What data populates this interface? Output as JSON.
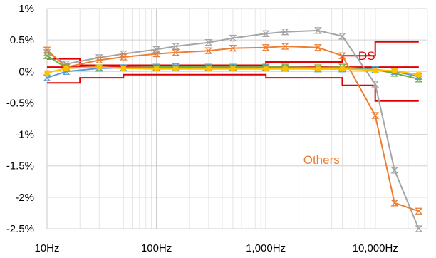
{
  "chart_data": {
    "type": "line",
    "xscale": "log",
    "xlim": [
      10,
      30000
    ],
    "ylim": [
      -2.5,
      1
    ],
    "x_tick_labels": [
      {
        "value": 10,
        "label": "10Hz"
      },
      {
        "value": 100,
        "label": "100Hz"
      },
      {
        "value": 1000,
        "label": "1,000Hz"
      },
      {
        "value": 10000,
        "label": "10,000Hz"
      }
    ],
    "y_tick_labels": [
      {
        "value": 1,
        "label": "1%"
      },
      {
        "value": 0.5,
        "label": "0.5%"
      },
      {
        "value": 0,
        "label": "0%"
      },
      {
        "value": -0.5,
        "label": "-0.5%"
      },
      {
        "value": -1,
        "label": "-1%"
      },
      {
        "value": -1.5,
        "label": "-1.5%"
      },
      {
        "value": -2,
        "label": "-2%"
      },
      {
        "value": -2.5,
        "label": "-2.5%"
      }
    ],
    "grid": true,
    "annotations": [
      {
        "text": "DS",
        "color": "#e00000",
        "x": 7000,
        "y": 0.25
      },
      {
        "text": "Others",
        "color": "#ed7d31",
        "x": 2200,
        "y": -1.4
      }
    ],
    "limit_lines": {
      "color": "#e00000",
      "upper": [
        [
          10,
          0.2
        ],
        [
          20,
          0.2
        ],
        [
          20,
          0.1
        ],
        [
          1000,
          0.1
        ],
        [
          1000,
          0.15
        ],
        [
          5000,
          0.15
        ],
        [
          5000,
          0.25
        ],
        [
          10000,
          0.25
        ],
        [
          10000,
          0.47
        ],
        [
          25000,
          0.47
        ]
      ],
      "lower": [
        [
          10,
          -0.18
        ],
        [
          20,
          -0.18
        ],
        [
          20,
          -0.1
        ],
        [
          50,
          -0.1
        ],
        [
          50,
          -0.05
        ],
        [
          1000,
          -0.05
        ],
        [
          1000,
          -0.1
        ],
        [
          5000,
          -0.1
        ],
        [
          5000,
          -0.22
        ],
        [
          10000,
          -0.22
        ],
        [
          10000,
          -0.47
        ],
        [
          25000,
          -0.47
        ]
      ],
      "mid": [
        [
          10,
          0.07
        ],
        [
          25000,
          0.07
        ]
      ]
    },
    "series": [
      {
        "color": "#a5a5a5",
        "marker": "hourglass",
        "x": [
          10,
          15,
          30,
          50,
          100,
          150,
          300,
          500,
          1000,
          1500,
          3000,
          5000,
          10000,
          15000,
          25000
        ],
        "y": [
          0.3,
          0.12,
          0.22,
          0.28,
          0.35,
          0.4,
          0.46,
          0.53,
          0.6,
          0.63,
          0.65,
          0.56,
          -0.2,
          -1.57,
          -2.5
        ]
      },
      {
        "color": "#ed7d31",
        "marker": "hourglass",
        "x": [
          10,
          15,
          30,
          50,
          100,
          150,
          300,
          500,
          1000,
          1500,
          3000,
          5000,
          10000,
          15000,
          25000
        ],
        "y": [
          0.34,
          0.07,
          0.18,
          0.23,
          0.28,
          0.3,
          0.33,
          0.37,
          0.38,
          0.4,
          0.38,
          0.25,
          -0.7,
          -2.09,
          -2.22
        ]
      },
      {
        "color": "#70ad47",
        "marker": "hourglass",
        "x": [
          10,
          15,
          30,
          50,
          100,
          150,
          300,
          500,
          1000,
          1500,
          3000,
          5000,
          10000,
          15000,
          25000
        ],
        "y": [
          0.25,
          0.06,
          0.06,
          0.06,
          0.07,
          0.08,
          0.07,
          0.07,
          0.07,
          0.07,
          0.06,
          0.07,
          0.03,
          -0.03,
          -0.12
        ]
      },
      {
        "color": "#5b9bd5",
        "marker": "hourglass",
        "x": [
          10,
          15,
          30,
          50,
          100,
          150,
          300,
          500,
          1000,
          1500,
          3000,
          5000,
          10000,
          15000,
          25000
        ],
        "y": [
          -0.1,
          0.0,
          0.05,
          0.06,
          0.06,
          0.06,
          0.06,
          0.06,
          0.06,
          0.05,
          0.04,
          0.04,
          0.03,
          0.0,
          -0.08
        ]
      },
      {
        "color": "#ffc000",
        "marker": "square",
        "x": [
          10,
          15,
          30,
          50,
          100,
          150,
          300,
          500,
          1000,
          1500,
          3000,
          5000,
          10000,
          15000,
          25000
        ],
        "y": [
          -0.02,
          0.05,
          0.07,
          0.05,
          0.04,
          0.04,
          0.04,
          0.04,
          0.04,
          0.04,
          0.04,
          0.04,
          0.02,
          0.01,
          -0.05
        ]
      }
    ]
  }
}
